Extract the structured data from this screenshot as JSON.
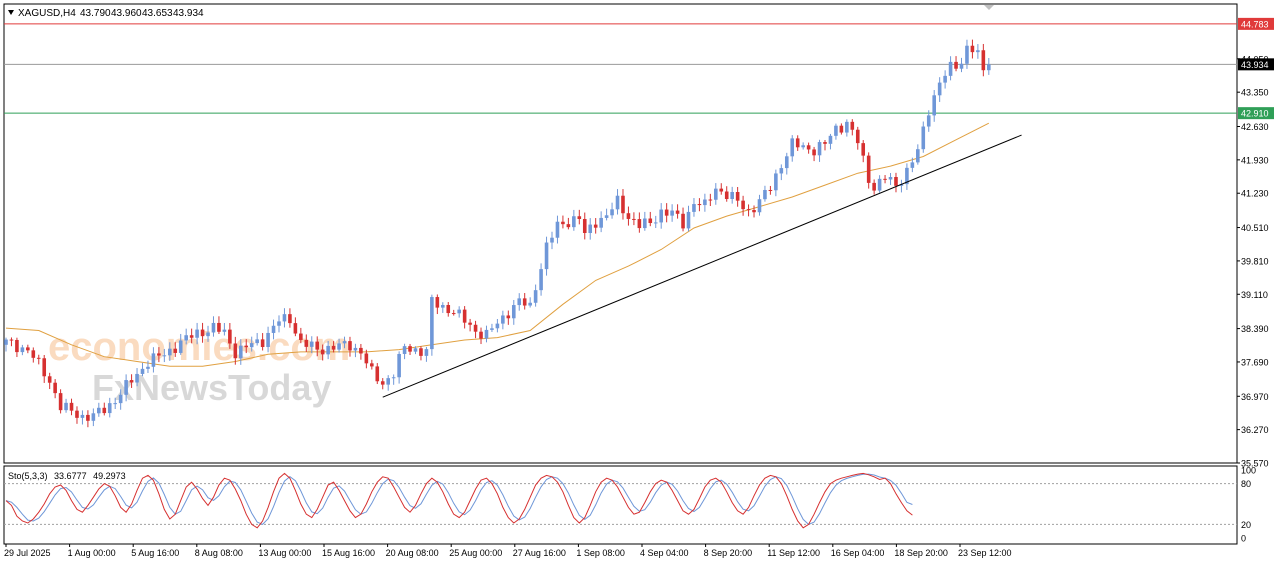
{
  "header": {
    "menu_icon": "triangle-down-icon",
    "symbol": "XAGUSD,H4",
    "open": "43.790",
    "high": "43.960",
    "low": "43.653",
    "close": "43.934"
  },
  "watermark": {
    "line1": "economies.com",
    "line2": "FxNewsToday"
  },
  "colors": {
    "bull": "#6f97d8",
    "bear": "#d63030",
    "ma": "#e0a040",
    "resistance": "#e03a3a",
    "support": "#2f9f57",
    "current": "#9a9a9a",
    "trendline": "#000000",
    "stoch_main": "#d63030",
    "stoch_signal": "#6f97d8"
  },
  "chart_data": {
    "type": "candlestick",
    "price_axis_ticks": [
      "44.050",
      "43.350",
      "42.630",
      "41.930",
      "41.230",
      "40.510",
      "39.810",
      "39.110",
      "38.390",
      "37.690",
      "36.970",
      "36.270",
      "35.570"
    ],
    "ylim": [
      35.57,
      45.2
    ],
    "time_axis_labels": [
      "29 Jul 2025",
      "1 Aug 00:00",
      "5 Aug 16:00",
      "8 Aug 08:00",
      "13 Aug 00:00",
      "15 Aug 16:00",
      "20 Aug 08:00",
      "25 Aug 00:00",
      "27 Aug 16:00",
      "1 Sep 08:00",
      "4 Sep 04:00",
      "8 Sep 20:00",
      "11 Sep 12:00",
      "16 Sep 04:00",
      "18 Sep 20:00",
      "23 Sep 12:00"
    ],
    "horizontal_levels": [
      {
        "label": "44.783",
        "value": 44.783,
        "role": "resistance"
      },
      {
        "label": "43.934",
        "value": 43.934,
        "role": "current"
      },
      {
        "label": "42.910",
        "value": 42.91,
        "role": "support"
      }
    ],
    "close_path": [
      [
        0,
        38.1
      ],
      [
        4,
        37.95
      ],
      [
        8,
        37.3
      ],
      [
        10,
        36.75
      ],
      [
        14,
        36.55
      ],
      [
        16,
        36.55
      ],
      [
        18,
        36.7
      ],
      [
        20,
        36.9
      ],
      [
        23,
        37.3
      ],
      [
        26,
        37.7
      ],
      [
        29,
        37.85
      ],
      [
        32,
        38.1
      ],
      [
        35,
        38.3
      ],
      [
        38,
        38.4
      ],
      [
        40,
        38.3
      ],
      [
        42,
        37.9
      ],
      [
        44,
        38.0
      ],
      [
        47,
        38.15
      ],
      [
        50,
        38.55
      ],
      [
        52,
        38.6
      ],
      [
        54,
        38.1
      ],
      [
        57,
        37.95
      ],
      [
        60,
        38.0
      ],
      [
        63,
        38.05
      ],
      [
        65,
        37.9
      ],
      [
        67,
        37.45
      ],
      [
        69,
        37.25
      ],
      [
        71,
        37.45
      ],
      [
        73,
        38.0
      ],
      [
        75,
        37.95
      ],
      [
        77,
        37.9
      ],
      [
        78,
        38.95
      ],
      [
        80,
        38.85
      ],
      [
        82,
        38.75
      ],
      [
        84,
        38.55
      ],
      [
        86,
        38.35
      ],
      [
        88,
        38.25
      ],
      [
        90,
        38.5
      ],
      [
        92,
        38.75
      ],
      [
        94,
        38.95
      ],
      [
        96,
        38.85
      ],
      [
        97,
        39.3
      ],
      [
        99,
        40.1
      ],
      [
        101,
        40.55
      ],
      [
        103,
        40.65
      ],
      [
        105,
        40.7
      ],
      [
        106,
        40.35
      ],
      [
        108,
        40.65
      ],
      [
        110,
        40.75
      ],
      [
        112,
        41.05
      ],
      [
        114,
        40.75
      ],
      [
        116,
        40.55
      ],
      [
        118,
        40.6
      ],
      [
        120,
        40.85
      ],
      [
        122,
        40.8
      ],
      [
        124,
        40.6
      ],
      [
        126,
        41.05
      ],
      [
        128,
        40.95
      ],
      [
        130,
        41.35
      ],
      [
        132,
        41.2
      ],
      [
        134,
        41.05
      ],
      [
        136,
        40.85
      ],
      [
        138,
        41.05
      ],
      [
        140,
        41.35
      ],
      [
        142,
        41.85
      ],
      [
        144,
        42.25
      ],
      [
        146,
        42.2
      ],
      [
        148,
        42.15
      ],
      [
        150,
        42.25
      ],
      [
        152,
        42.6
      ],
      [
        154,
        42.7
      ],
      [
        156,
        42.3
      ],
      [
        158,
        41.55
      ],
      [
        159,
        41.35
      ],
      [
        161,
        41.55
      ],
      [
        163,
        41.4
      ],
      [
        165,
        41.7
      ],
      [
        167,
        42.1
      ],
      [
        169,
        43.0
      ],
      [
        171,
        43.55
      ],
      [
        173,
        43.85
      ],
      [
        175,
        44.0
      ],
      [
        176,
        44.3
      ],
      [
        177,
        44.25
      ],
      [
        178,
        44.1
      ],
      [
        179,
        43.8
      ],
      [
        180,
        43.934
      ]
    ],
    "ma_path": [
      [
        0,
        38.4
      ],
      [
        6,
        38.35
      ],
      [
        12,
        38.05
      ],
      [
        18,
        37.8
      ],
      [
        24,
        37.7
      ],
      [
        30,
        37.6
      ],
      [
        36,
        37.6
      ],
      [
        42,
        37.7
      ],
      [
        48,
        37.85
      ],
      [
        54,
        37.9
      ],
      [
        60,
        37.9
      ],
      [
        66,
        37.9
      ],
      [
        72,
        37.95
      ],
      [
        78,
        38.05
      ],
      [
        84,
        38.15
      ],
      [
        90,
        38.2
      ],
      [
        96,
        38.35
      ],
      [
        102,
        38.9
      ],
      [
        108,
        39.4
      ],
      [
        114,
        39.7
      ],
      [
        120,
        40.05
      ],
      [
        126,
        40.5
      ],
      [
        132,
        40.75
      ],
      [
        138,
        40.95
      ],
      [
        144,
        41.15
      ],
      [
        150,
        41.4
      ],
      [
        156,
        41.65
      ],
      [
        162,
        41.8
      ],
      [
        168,
        42.0
      ],
      [
        174,
        42.35
      ],
      [
        180,
        42.7
      ]
    ],
    "trendline": {
      "from": [
        69,
        36.95
      ],
      "to": [
        186,
        42.45
      ]
    },
    "stochastic": {
      "label": "Sto(5,3,3)",
      "main_value": "33.6777",
      "signal_value": "49.2973",
      "scale_labels": [
        "100",
        "80",
        "20",
        "0"
      ],
      "levels": [
        80,
        20
      ],
      "main_points": [
        55,
        48,
        32,
        25,
        22,
        28,
        38,
        50,
        65,
        75,
        78,
        70,
        55,
        42,
        38,
        48,
        60,
        72,
        80,
        76,
        62,
        45,
        38,
        50,
        70,
        88,
        92,
        85,
        65,
        42,
        28,
        35,
        55,
        75,
        82,
        72,
        58,
        48,
        60,
        78,
        88,
        85,
        72,
        55,
        35,
        20,
        15,
        25,
        45,
        68,
        88,
        95,
        88,
        70,
        50,
        35,
        30,
        42,
        60,
        78,
        82,
        70,
        55,
        40,
        30,
        35,
        50,
        68,
        82,
        90,
        88,
        75,
        60,
        45,
        38,
        48,
        65,
        80,
        88,
        82,
        68,
        50,
        35,
        30,
        38,
        55,
        72,
        85,
        88,
        80,
        65,
        45,
        30,
        22,
        28,
        42,
        60,
        78,
        88,
        92,
        90,
        82,
        68,
        48,
        30,
        22,
        30,
        48,
        68,
        82,
        88,
        85,
        75,
        60,
        45,
        35,
        38,
        52,
        68,
        80,
        85,
        82,
        70,
        55,
        40,
        35,
        42,
        58,
        75,
        85,
        88,
        82,
        68,
        52,
        40,
        35,
        45,
        62,
        78,
        88,
        92,
        90,
        80,
        62,
        42,
        25,
        15,
        20,
        35,
        52,
        68,
        80,
        85,
        88,
        90,
        92,
        94,
        95,
        93,
        90,
        86,
        88,
        80,
        65,
        52,
        40,
        33.68
      ]
    },
    "timeframe_marker_icon": "shift-marker-icon"
  }
}
